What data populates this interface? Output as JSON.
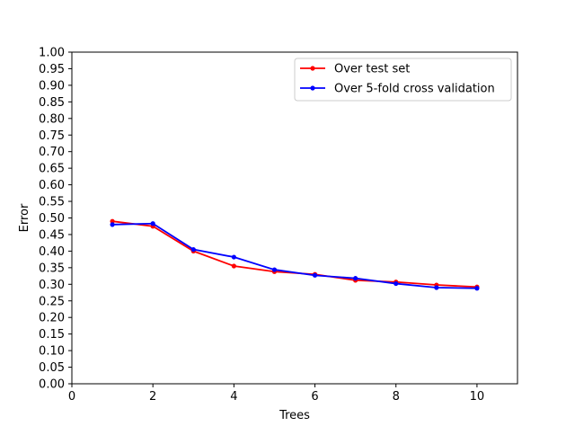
{
  "chart_data": {
    "type": "line",
    "title": "",
    "xlabel": "Trees",
    "ylabel": "Error",
    "xlim": [
      0,
      11
    ],
    "ylim": [
      0,
      1
    ],
    "xticks": [
      0,
      2,
      4,
      6,
      8,
      10
    ],
    "yticks": [
      0.0,
      0.05,
      0.1,
      0.15,
      0.2,
      0.25,
      0.3,
      0.35,
      0.4,
      0.45,
      0.5,
      0.55,
      0.6,
      0.65,
      0.7,
      0.75,
      0.8,
      0.85,
      0.9,
      0.95,
      1.0
    ],
    "grid": false,
    "legend_position": "top-right",
    "x": [
      1,
      2,
      3,
      4,
      5,
      6,
      7,
      8,
      9,
      10
    ],
    "series": [
      {
        "name": "Over test set",
        "color": "#ff0000",
        "marker": "point",
        "values": [
          0.49,
          0.475,
          0.4,
          0.355,
          0.338,
          0.33,
          0.312,
          0.307,
          0.298,
          0.292
        ]
      },
      {
        "name": "Over 5-fold cross validation",
        "color": "#0000ff",
        "marker": "point",
        "values": [
          0.48,
          0.483,
          0.405,
          0.382,
          0.344,
          0.327,
          0.318,
          0.302,
          0.29,
          0.288
        ]
      }
    ]
  }
}
